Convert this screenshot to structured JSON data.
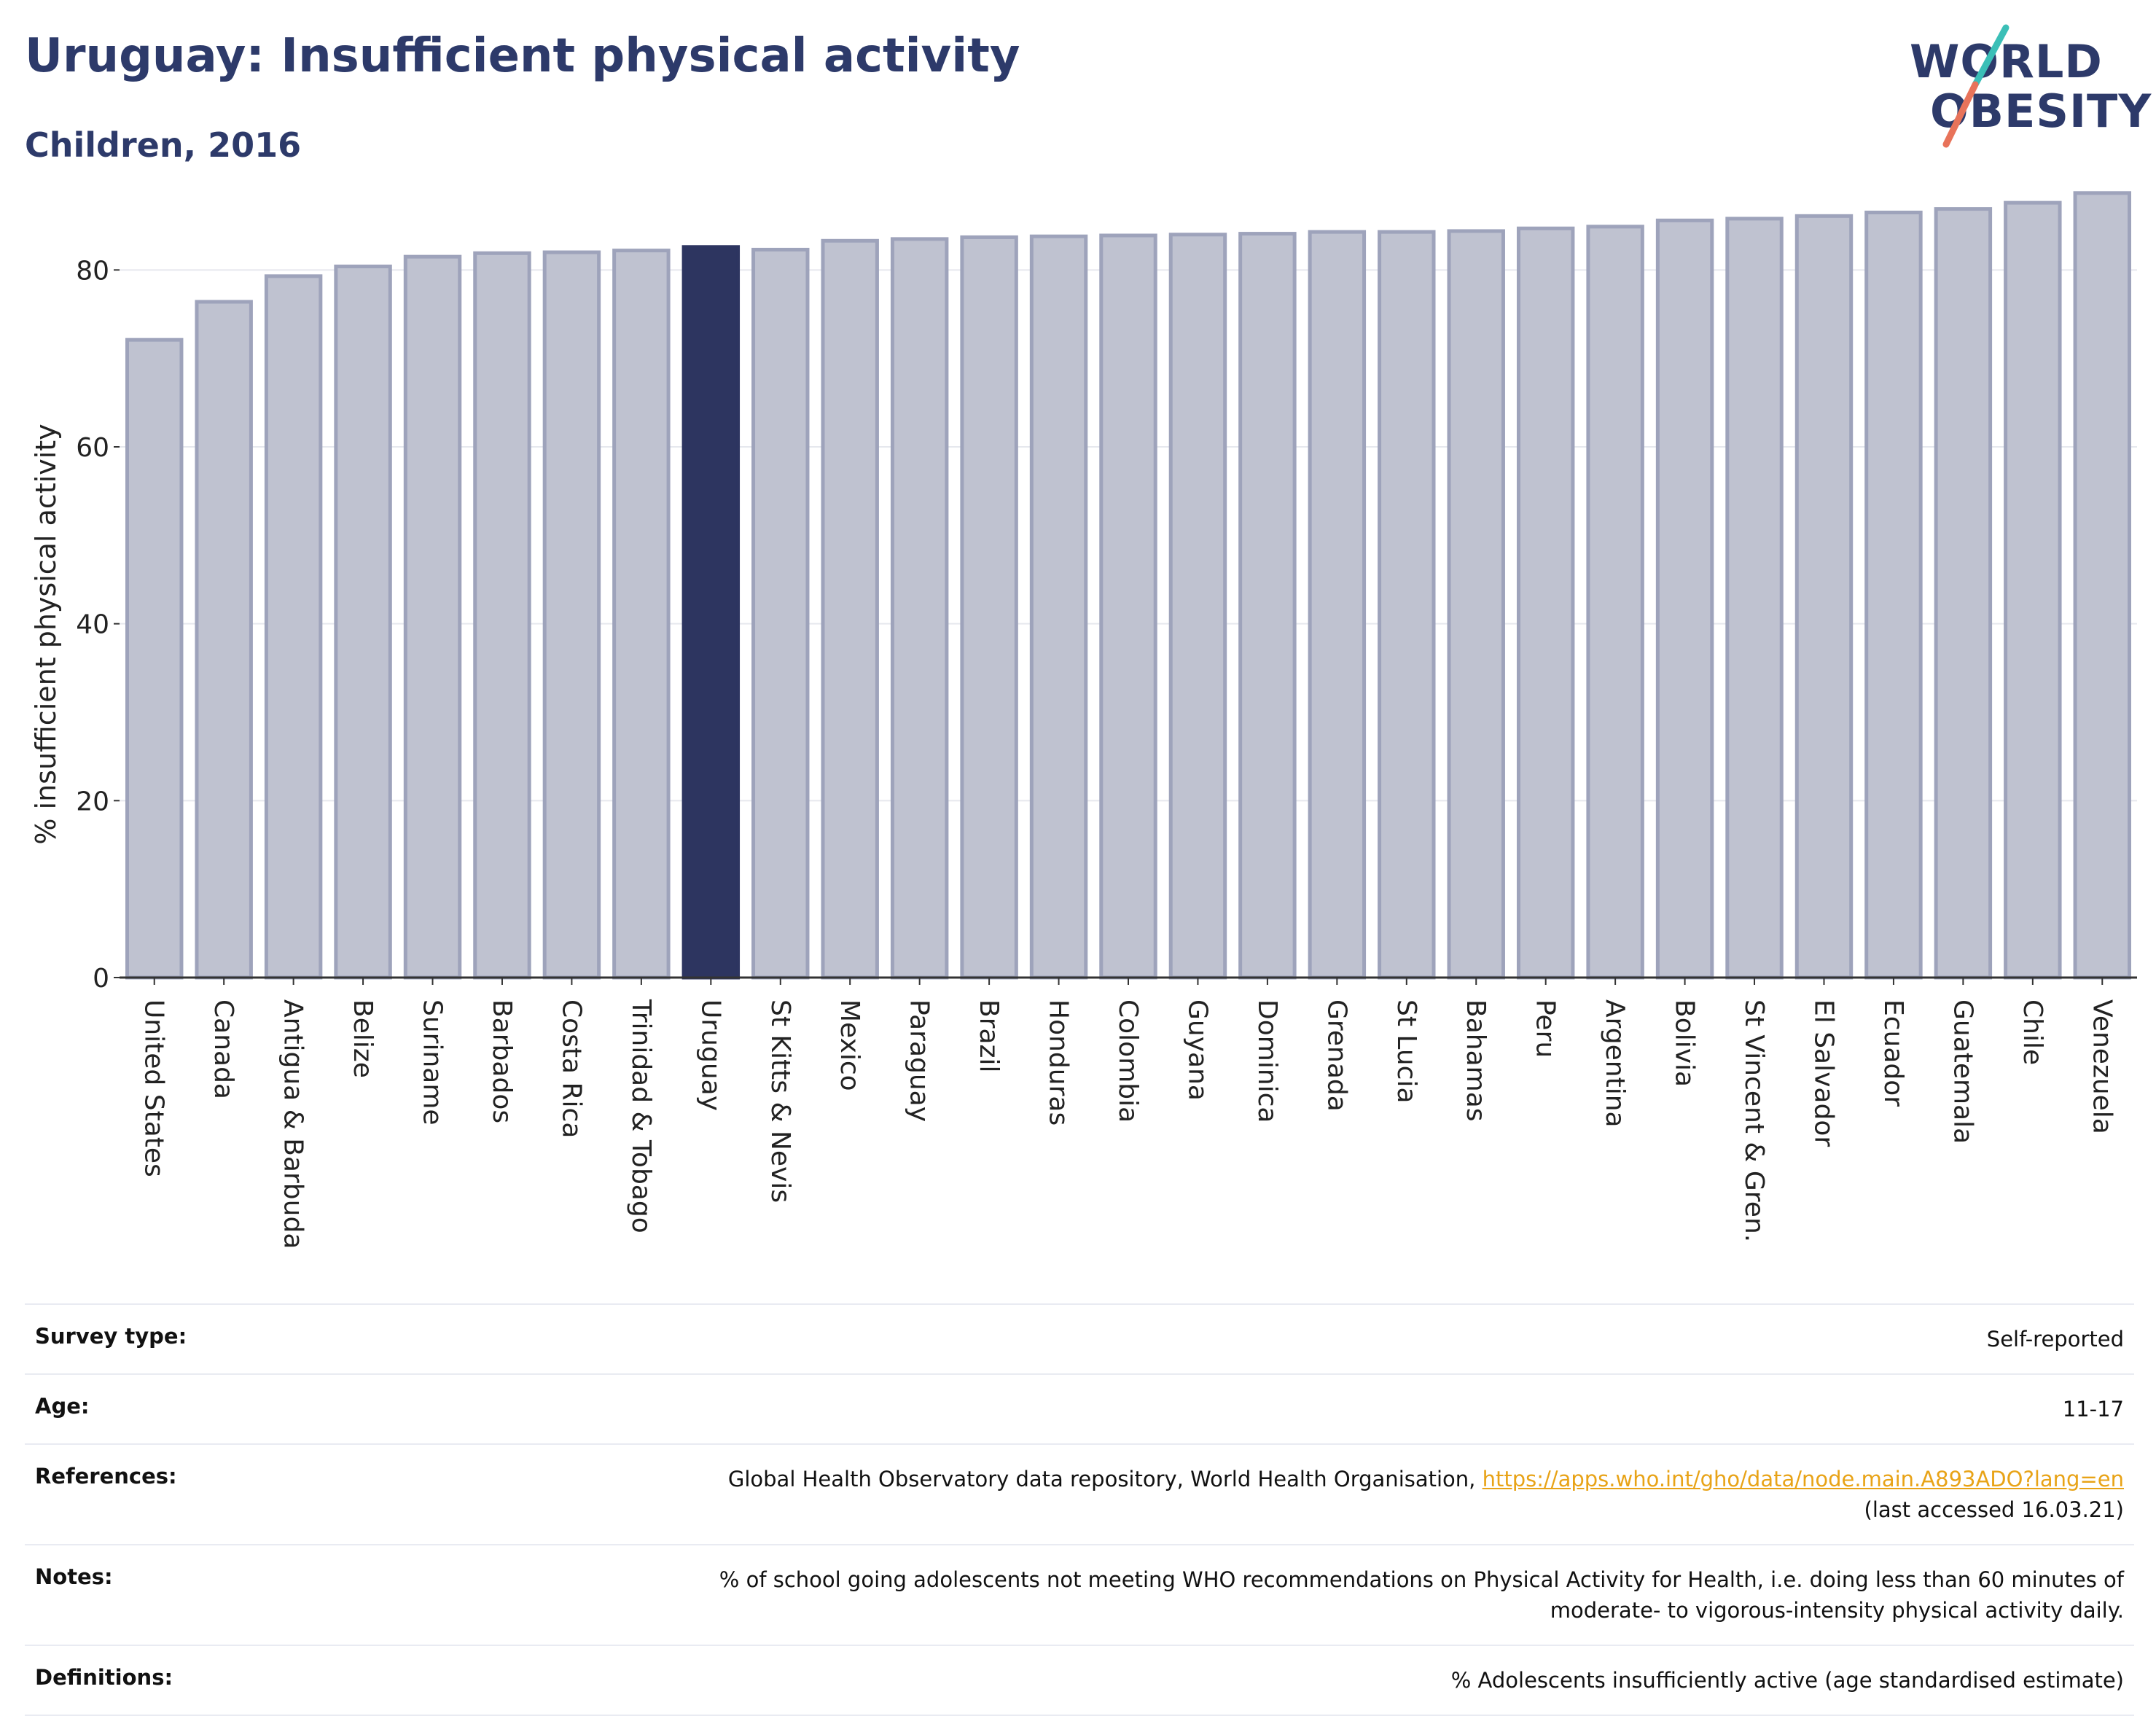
{
  "header": {
    "title": "Uruguay: Insufficient physical activity",
    "subtitle": "Children, 2016"
  },
  "logo": {
    "line1": "WORLD",
    "line2": "OBESITY",
    "colors": {
      "text": "#2d3a6a",
      "slash_top": "#3bbfb7",
      "slash_bottom": "#e8735a"
    }
  },
  "chart_data": {
    "type": "bar",
    "ylabel": "% insufficient physical activity",
    "xlabel": "",
    "ylim": [
      0,
      90
    ],
    "yticks": [
      0,
      20,
      40,
      60,
      80
    ],
    "grid": true,
    "highlight": "Uruguay",
    "colors": {
      "bar": "#bfc2d0",
      "bar_edge": "#9ea3bb",
      "highlight": "#2d3560",
      "axis": "#333333",
      "grid": "#e6e8ee"
    },
    "categories": [
      "United States",
      "Canada",
      "Antigua & Barbuda",
      "Belize",
      "Suriname",
      "Barbados",
      "Costa Rica",
      "Trinidad & Tobago",
      "Uruguay",
      "St Kitts & Nevis",
      "Mexico",
      "Paraguay",
      "Brazil",
      "Honduras",
      "Colombia",
      "Guyana",
      "Dominica",
      "Grenada",
      "St Lucia",
      "Bahamas",
      "Peru",
      "Argentina",
      "Bolivia",
      "St Vincent & Gren.",
      "El Salvador",
      "Ecuador",
      "Guatemala",
      "Chile",
      "Venezuela"
    ],
    "values": [
      72.1,
      76.4,
      79.3,
      80.4,
      81.5,
      81.9,
      82.0,
      82.2,
      82.6,
      82.3,
      83.3,
      83.5,
      83.7,
      83.8,
      83.9,
      84.0,
      84.1,
      84.3,
      84.3,
      84.4,
      84.7,
      84.9,
      85.6,
      85.8,
      86.1,
      86.5,
      86.9,
      87.6,
      88.7
    ]
  },
  "info": {
    "survey_type": {
      "label": "Survey type:",
      "value": "Self-reported"
    },
    "age": {
      "label": "Age:",
      "value": "11-17"
    },
    "references": {
      "label": "References:",
      "text": "Global Health Observatory data repository, World Health Organisation,",
      "link": "https://apps.who.int/gho/data/node.main.A893ADO?lang=en",
      "accessed": "(last accessed 16.03.21)"
    },
    "notes": {
      "label": "Notes:",
      "line1": "% of school going adolescents not meeting WHO recommendations on Physical Activity for Health, i.e. doing less than 60 minutes of",
      "line2": "moderate- to vigorous-intensity physical activity daily."
    },
    "definitions": {
      "label": "Definitions:",
      "value": "% Adolescents insufficiently active (age standardised estimate)"
    }
  }
}
